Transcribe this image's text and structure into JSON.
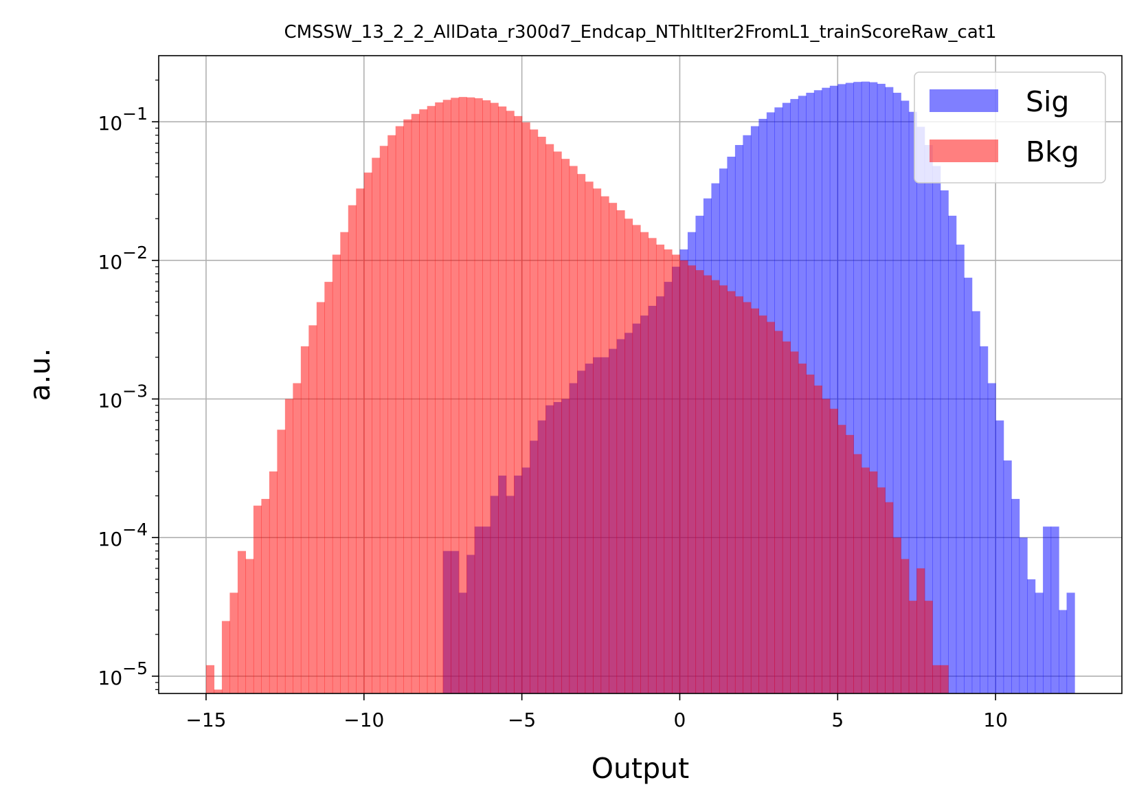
{
  "chart_data": {
    "type": "bar",
    "subtype": "overlaid step histogram",
    "title": "CMSSW_13_2_2_AllData_r300d7_Endcap_NThltIter2FromL1_trainScoreRaw_cat1",
    "xlabel": "Output",
    "ylabel": "a.u.",
    "xlim": [
      -16.5,
      14
    ],
    "ylim": [
      7.5e-06,
      0.3
    ],
    "yscale": "log",
    "grid": true,
    "legend_position": "top-right",
    "xticks": [
      -15,
      -10,
      -5,
      0,
      5,
      10
    ],
    "xtick_labels": [
      "−15",
      "−10",
      "−5",
      "0",
      "5",
      "10"
    ],
    "yticks": [
      {
        "value": 0.1,
        "base": "10",
        "exp": "−1"
      },
      {
        "value": 0.01,
        "base": "10",
        "exp": "−2"
      },
      {
        "value": 0.001,
        "base": "10",
        "exp": "−3"
      },
      {
        "value": 0.0001,
        "base": "10",
        "exp": "−4"
      },
      {
        "value": 1e-05,
        "base": "10",
        "exp": "−5"
      }
    ],
    "series": [
      {
        "name": "Sig",
        "color": "#0000ff",
        "opacity": 0.5,
        "points": [
          [
            -7.5,
            8e-05
          ],
          [
            -7.25,
            8e-05
          ],
          [
            -7.0,
            4e-05
          ],
          [
            -6.75,
            7.5e-05
          ],
          [
            -6.5,
            0.00012
          ],
          [
            -6.25,
            0.00012
          ],
          [
            -6.0,
            0.0002
          ],
          [
            -5.75,
            0.00028
          ],
          [
            -5.5,
            0.0002
          ],
          [
            -5.25,
            0.00028
          ],
          [
            -5.0,
            0.00032
          ],
          [
            -4.75,
            0.0005
          ],
          [
            -4.5,
            0.0007
          ],
          [
            -4.25,
            0.0009
          ],
          [
            -4.0,
            0.00095
          ],
          [
            -3.75,
            0.001
          ],
          [
            -3.5,
            0.0013
          ],
          [
            -3.25,
            0.0016
          ],
          [
            -3.0,
            0.0018
          ],
          [
            -2.75,
            0.002
          ],
          [
            -2.5,
            0.002
          ],
          [
            -2.25,
            0.0023
          ],
          [
            -2.0,
            0.0027
          ],
          [
            -1.75,
            0.003
          ],
          [
            -1.5,
            0.0035
          ],
          [
            -1.25,
            0.004
          ],
          [
            -1.0,
            0.0047
          ],
          [
            -0.75,
            0.0055
          ],
          [
            -0.5,
            0.007
          ],
          [
            -0.25,
            0.009
          ],
          [
            0.0,
            0.012
          ],
          [
            0.25,
            0.016
          ],
          [
            0.5,
            0.021
          ],
          [
            0.75,
            0.028
          ],
          [
            1.0,
            0.036
          ],
          [
            1.25,
            0.046
          ],
          [
            1.5,
            0.056
          ],
          [
            1.75,
            0.068
          ],
          [
            2.0,
            0.08
          ],
          [
            2.25,
            0.093
          ],
          [
            2.5,
            0.105
          ],
          [
            2.75,
            0.117
          ],
          [
            3.0,
            0.127
          ],
          [
            3.25,
            0.137
          ],
          [
            3.5,
            0.146
          ],
          [
            3.75,
            0.154
          ],
          [
            4.0,
            0.162
          ],
          [
            4.25,
            0.169
          ],
          [
            4.5,
            0.176
          ],
          [
            4.75,
            0.182
          ],
          [
            5.0,
            0.187
          ],
          [
            5.25,
            0.191
          ],
          [
            5.5,
            0.194
          ],
          [
            5.75,
            0.195
          ],
          [
            6.0,
            0.193
          ],
          [
            6.25,
            0.188
          ],
          [
            6.5,
            0.178
          ],
          [
            6.75,
            0.162
          ],
          [
            7.0,
            0.142
          ],
          [
            7.25,
            0.118
          ],
          [
            7.5,
            0.092
          ],
          [
            7.75,
            0.068
          ],
          [
            8.0,
            0.048
          ],
          [
            8.25,
            0.032
          ],
          [
            8.5,
            0.021
          ],
          [
            8.75,
            0.013
          ],
          [
            9.0,
            0.0075
          ],
          [
            9.25,
            0.0043
          ],
          [
            9.5,
            0.0024
          ],
          [
            9.75,
            0.0013
          ],
          [
            10.0,
            0.0007
          ],
          [
            10.25,
            0.00036
          ],
          [
            10.5,
            0.00019
          ],
          [
            10.75,
            0.0001
          ],
          [
            11.0,
            5e-05
          ],
          [
            11.25,
            4e-05
          ],
          [
            11.5,
            0.00012
          ],
          [
            11.75,
            0.00012
          ],
          [
            12.0,
            3e-05
          ],
          [
            12.25,
            4e-05
          ]
        ]
      },
      {
        "name": "Bkg",
        "color": "#ff0000",
        "opacity": 0.5,
        "points": [
          [
            -15.0,
            1.2e-05
          ],
          [
            -14.75,
            8e-06
          ],
          [
            -14.5,
            2.5e-05
          ],
          [
            -14.25,
            4e-05
          ],
          [
            -14.0,
            8e-05
          ],
          [
            -13.75,
            7e-05
          ],
          [
            -13.5,
            0.00017
          ],
          [
            -13.25,
            0.00019
          ],
          [
            -13.0,
            0.0003
          ],
          [
            -12.75,
            0.0006
          ],
          [
            -12.5,
            0.001
          ],
          [
            -12.25,
            0.0013
          ],
          [
            -12.0,
            0.0024
          ],
          [
            -11.75,
            0.0034
          ],
          [
            -11.5,
            0.005
          ],
          [
            -11.25,
            0.007
          ],
          [
            -11.0,
            0.011
          ],
          [
            -10.75,
            0.016
          ],
          [
            -10.5,
            0.025
          ],
          [
            -10.25,
            0.033
          ],
          [
            -10.0,
            0.043
          ],
          [
            -9.75,
            0.055
          ],
          [
            -9.5,
            0.067
          ],
          [
            -9.25,
            0.08
          ],
          [
            -9.0,
            0.093
          ],
          [
            -8.75,
            0.104
          ],
          [
            -8.5,
            0.114
          ],
          [
            -8.25,
            0.123
          ],
          [
            -8.0,
            0.13
          ],
          [
            -7.75,
            0.138
          ],
          [
            -7.5,
            0.144
          ],
          [
            -7.25,
            0.149
          ],
          [
            -7.0,
            0.151
          ],
          [
            -6.75,
            0.15
          ],
          [
            -6.5,
            0.148
          ],
          [
            -6.25,
            0.143
          ],
          [
            -6.0,
            0.137
          ],
          [
            -5.75,
            0.129
          ],
          [
            -5.5,
            0.12
          ],
          [
            -5.25,
            0.11
          ],
          [
            -5.0,
            0.099
          ],
          [
            -4.75,
            0.088
          ],
          [
            -4.5,
            0.078
          ],
          [
            -4.25,
            0.069
          ],
          [
            -4.0,
            0.061
          ],
          [
            -3.75,
            0.054
          ],
          [
            -3.5,
            0.048
          ],
          [
            -3.25,
            0.042
          ],
          [
            -3.0,
            0.037
          ],
          [
            -2.75,
            0.033
          ],
          [
            -2.5,
            0.029
          ],
          [
            -2.25,
            0.026
          ],
          [
            -2.0,
            0.023
          ],
          [
            -1.75,
            0.02
          ],
          [
            -1.5,
            0.018
          ],
          [
            -1.25,
            0.016
          ],
          [
            -1.0,
            0.0145
          ],
          [
            -0.75,
            0.013
          ],
          [
            -0.5,
            0.012
          ],
          [
            -0.25,
            0.011
          ],
          [
            0.0,
            0.01
          ],
          [
            0.25,
            0.0092
          ],
          [
            0.5,
            0.0085
          ],
          [
            0.75,
            0.0078
          ],
          [
            1.0,
            0.0072
          ],
          [
            1.25,
            0.0066
          ],
          [
            1.5,
            0.006
          ],
          [
            1.75,
            0.0055
          ],
          [
            2.0,
            0.005
          ],
          [
            2.25,
            0.0045
          ],
          [
            2.5,
            0.004
          ],
          [
            2.75,
            0.0036
          ],
          [
            3.0,
            0.0031
          ],
          [
            3.25,
            0.0026
          ],
          [
            3.5,
            0.0022
          ],
          [
            3.75,
            0.0018
          ],
          [
            4.0,
            0.0015
          ],
          [
            4.25,
            0.00125
          ],
          [
            4.5,
            0.001
          ],
          [
            4.75,
            0.00085
          ],
          [
            5.0,
            0.00065
          ],
          [
            5.25,
            0.00055
          ],
          [
            5.5,
            0.0004
          ],
          [
            5.75,
            0.00032
          ],
          [
            6.0,
            0.0003
          ],
          [
            6.25,
            0.00023
          ],
          [
            6.5,
            0.00018
          ],
          [
            6.75,
            0.0001
          ],
          [
            7.0,
            7e-05
          ],
          [
            7.25,
            3.5e-05
          ],
          [
            7.5,
            6e-05
          ],
          [
            7.75,
            3.5e-05
          ],
          [
            8.0,
            1.2e-05
          ],
          [
            8.25,
            1.2e-05
          ]
        ]
      }
    ]
  }
}
